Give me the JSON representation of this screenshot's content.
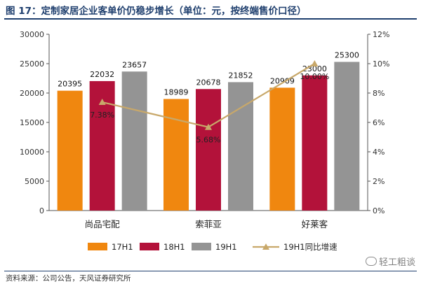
{
  "header": {
    "title": "图 17：定制家居企业客单价仍稳步增长（单位：元，按终端售价口径）"
  },
  "footer": {
    "source": "资料来源：公司公告，天风证券研究所"
  },
  "watermark": {
    "text": "轻工粗谈"
  },
  "chart_data": {
    "type": "bar",
    "title": "",
    "categories": [
      "尚品宅配",
      "索菲亚",
      "好莱客"
    ],
    "series": [
      {
        "name": "17H1",
        "type": "bar",
        "axis": "left",
        "color": "#f0870f",
        "values": [
          20395,
          18989,
          20909
        ]
      },
      {
        "name": "18H1",
        "type": "bar",
        "axis": "left",
        "color": "#b3123a",
        "values": [
          22032,
          20678,
          23000
        ]
      },
      {
        "name": "19H1",
        "type": "bar",
        "axis": "left",
        "color": "#949494",
        "values": [
          23657,
          21852,
          25300
        ]
      },
      {
        "name": "19H1同比增速",
        "type": "line",
        "axis": "right",
        "color": "#c8a86a",
        "marker": "triangle",
        "values": [
          7.38,
          5.68,
          10.0
        ]
      }
    ],
    "value_labels": {
      "17H1": [
        "20395",
        "18989",
        "20909"
      ],
      "18H1": [
        "22032",
        "20678",
        "23000"
      ],
      "19H1": [
        "23657",
        "21852",
        "25300"
      ],
      "19H1同比增速": [
        "7.38%",
        "5.68%",
        "10.00%"
      ]
    },
    "y_left": {
      "min": 0,
      "max": 30000,
      "ticks": [
        "0",
        "5000",
        "10000",
        "15000",
        "20000",
        "25000",
        "30000"
      ]
    },
    "y_right": {
      "min": 0,
      "max": 12,
      "ticks": [
        "0%",
        "2%",
        "4%",
        "6%",
        "8%",
        "10%",
        "12%"
      ]
    },
    "xlabel": "",
    "ylabel": "",
    "grid": false,
    "legend_position": "bottom"
  }
}
